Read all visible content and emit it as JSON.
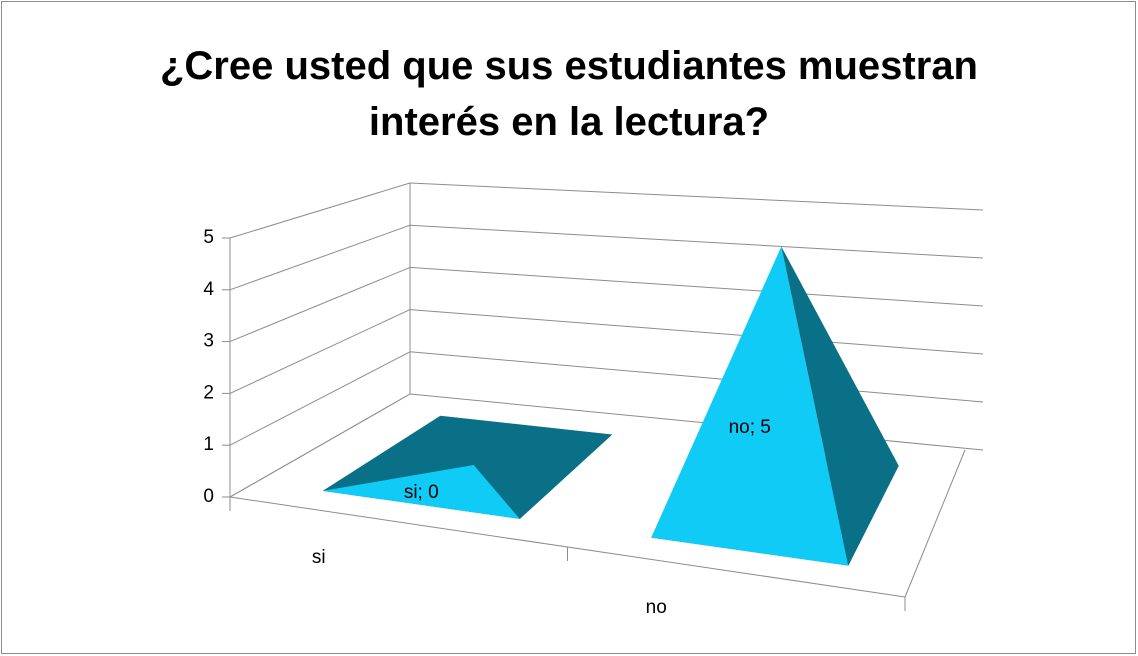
{
  "chart_data": {
    "type": "pyramid3d",
    "title": "¿Cree usted que sus estudiantes muestran interés en la lectura?",
    "categories": [
      "si",
      "no"
    ],
    "values": [
      0,
      5
    ],
    "value_labels": [
      "si; 0",
      "no; 5"
    ],
    "color": "#10cbf6",
    "ylim": [
      0,
      5
    ],
    "yticks": [
      0,
      1,
      2,
      3,
      4,
      5
    ],
    "grid": true
  }
}
